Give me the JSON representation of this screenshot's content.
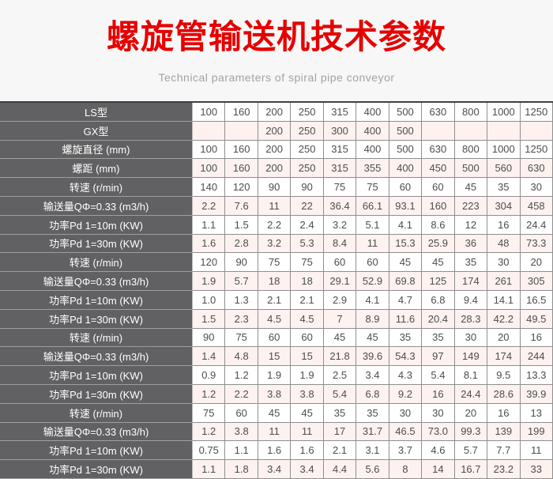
{
  "header": {
    "title": "螺旋管输送机技术参数",
    "subtitle": "Technical parameters of spiral pipe conveyor",
    "title_color": "#e60000"
  },
  "colors": {
    "page_bg": "#f7f7f7",
    "label_column_bg": "#616163",
    "label_text": "#ffffff",
    "row_alt_bg": "#fdf2f0",
    "row_bg": "#ffffff",
    "cell_border": "#8f8f8f",
    "data_text": "#4d4d4d"
  },
  "table": {
    "columns_count": 11,
    "rows": [
      {
        "label": "LS型",
        "values": [
          "100",
          "160",
          "200",
          "250",
          "315",
          "400",
          "500",
          "630",
          "800",
          "1000",
          "1250"
        ]
      },
      {
        "label": "GX型",
        "values": [
          "",
          "",
          "200",
          "250",
          "300",
          "400",
          "500",
          "",
          "",
          "",
          ""
        ]
      },
      {
        "label": "螺旋直径 (mm)",
        "values": [
          "100",
          "160",
          "200",
          "250",
          "315",
          "400",
          "500",
          "630",
          "800",
          "1000",
          "1250"
        ]
      },
      {
        "label": "螺距 (mm)",
        "values": [
          "100",
          "160",
          "200",
          "250",
          "315",
          "355",
          "400",
          "450",
          "500",
          "560",
          "630"
        ]
      },
      {
        "label": "转速 (r/min)",
        "values": [
          "140",
          "120",
          "90",
          "90",
          "75",
          "75",
          "60",
          "60",
          "45",
          "35",
          "30"
        ]
      },
      {
        "label": "输送量QΦ=0.33 (m3/h)",
        "values": [
          "2.2",
          "7.6",
          "11",
          "22",
          "36.4",
          "66.1",
          "93.1",
          "160",
          "223",
          "304",
          "458"
        ]
      },
      {
        "label": "功率Pd 1=10m (KW)",
        "values": [
          "1.1",
          "1.5",
          "2.2",
          "2.4",
          "3.2",
          "5.1",
          "4.1",
          "8.6",
          "12",
          "16",
          "24.4"
        ]
      },
      {
        "label": "功率Pd 1=30m (KW)",
        "values": [
          "1.6",
          "2.8",
          "3.2",
          "5.3",
          "8.4",
          "11",
          "15.3",
          "25.9",
          "36",
          "48",
          "73.3"
        ]
      },
      {
        "label": "转速 (r/min)",
        "values": [
          "120",
          "90",
          "75",
          "75",
          "60",
          "60",
          "45",
          "45",
          "35",
          "30",
          "20"
        ]
      },
      {
        "label": "输送量QΦ=0.33 (m3/h)",
        "values": [
          "1.9",
          "5.7",
          "18",
          "18",
          "29.1",
          "52.9",
          "69.8",
          "125",
          "174",
          "261",
          "305"
        ]
      },
      {
        "label": "功率Pd 1=10m (KW)",
        "values": [
          "1.0",
          "1.3",
          "2.1",
          "2.1",
          "2.9",
          "4.1",
          "4.7",
          "6.8",
          "9.4",
          "14.1",
          "16.5"
        ]
      },
      {
        "label": "功率Pd 1=30m (KW)",
        "values": [
          "1.5",
          "2.3",
          "4.5",
          "4.5",
          "7",
          "8.9",
          "11.6",
          "20.4",
          "28.3",
          "42.2",
          "49.5"
        ]
      },
      {
        "label": "转速 (r/min)",
        "values": [
          "90",
          "75",
          "60",
          "60",
          "45",
          "45",
          "35",
          "35",
          "30",
          "20",
          "16"
        ]
      },
      {
        "label": "输送量QΦ=0.33 (m3/h)",
        "values": [
          "1.4",
          "4.8",
          "15",
          "15",
          "21.8",
          "39.6",
          "54.3",
          "97",
          "149",
          "174",
          "244"
        ]
      },
      {
        "label": "功率Pd 1=10m (KW)",
        "values": [
          "0.9",
          "1.2",
          "1.9",
          "1.9",
          "2.5",
          "3.4",
          "4.3",
          "5.4",
          "8.1",
          "9.5",
          "13.3"
        ]
      },
      {
        "label": "功率Pd 1=30m (KW)",
        "values": [
          "1.2",
          "2.2",
          "3.8",
          "3.8",
          "5.4",
          "6.8",
          "9.2",
          "16",
          "24.4",
          "28.6",
          "39.9"
        ]
      },
      {
        "label": "转速 (r/min)",
        "values": [
          "75",
          "60",
          "45",
          "45",
          "35",
          "35",
          "30",
          "30",
          "20",
          "16",
          "13"
        ]
      },
      {
        "label": "输送量QΦ=0.33 (m3/h)",
        "values": [
          "1.2",
          "3.8",
          "11",
          "11",
          "17",
          "31.7",
          "46.5",
          "73.0",
          "99.3",
          "139",
          "199"
        ]
      },
      {
        "label": "功率Pd 1=10m (KW)",
        "values": [
          "0.75",
          "1.1",
          "1.6",
          "1.6",
          "2.1",
          "3.1",
          "3.7",
          "4.6",
          "5.7",
          "7.7",
          "11"
        ]
      },
      {
        "label": "功率Pd 1=30m (KW)",
        "values": [
          "1.1",
          "1.8",
          "3.4",
          "3.4",
          "4.4",
          "5.6",
          "8",
          "14",
          "16.7",
          "23.2",
          "33"
        ]
      }
    ]
  }
}
